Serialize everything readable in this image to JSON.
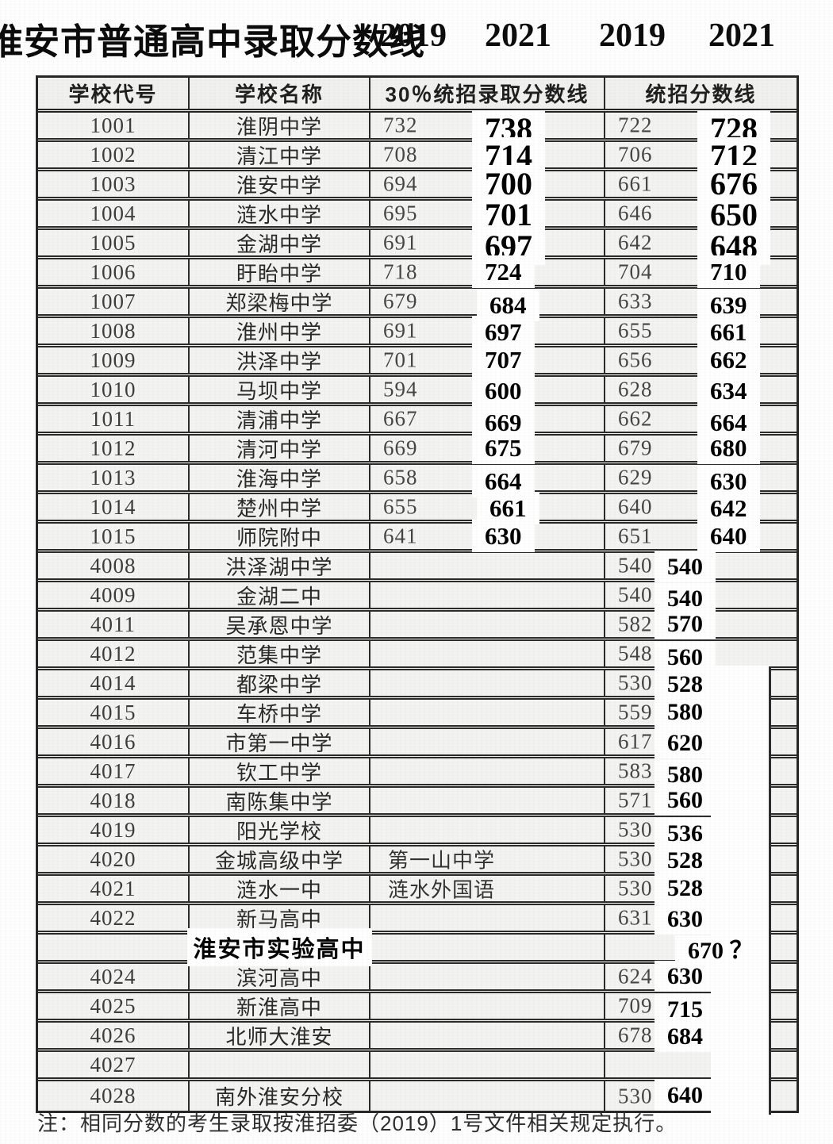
{
  "page": {
    "title": "淮安市普通高中录取分数线",
    "year_labels": [
      "2019",
      "2021",
      "2019",
      "2021"
    ],
    "note": "注：相同分数的考生录取按淮招委（2019）1号文件相关规定执行。"
  },
  "colors": {
    "border": "#262626",
    "cell_bg": "#f3f3f1",
    "overlay_bg": "#ffffff",
    "scan_text": "#454545",
    "bold_text": "#000000"
  },
  "table": {
    "headers": {
      "code": "学校代号",
      "name": "学校名称",
      "p30": "30％统招录取分数线",
      "unified": "统招分数线"
    },
    "rows": [
      {
        "code": "1001",
        "name": "淮阴中学",
        "p19": "732",
        "p21": "738",
        "alt": "",
        "u19": "722",
        "u21": "728",
        "em": false
      },
      {
        "code": "1002",
        "name": "清江中学",
        "p19": "708",
        "p21": "714",
        "alt": "",
        "u19": "706",
        "u21": "712",
        "em": false
      },
      {
        "code": "1003",
        "name": "淮安中学",
        "p19": "694",
        "p21": "700",
        "alt": "",
        "u19": "661",
        "u21": "676",
        "em": false
      },
      {
        "code": "1004",
        "name": "涟水中学",
        "p19": "695",
        "p21": "701",
        "alt": "",
        "u19": "646",
        "u21": "650",
        "em": false
      },
      {
        "code": "1005",
        "name": "金湖中学",
        "p19": "691",
        "p21": "697",
        "alt": "",
        "u19": "642",
        "u21": "648",
        "em": false
      },
      {
        "code": "1006",
        "name": "盱眙中学",
        "p19": "718",
        "p21": "724",
        "alt": "",
        "u19": "704",
        "u21": "710",
        "em": false
      },
      {
        "code": "1007",
        "name": "郑梁梅中学",
        "p19": "679",
        "p21": "684",
        "alt": "",
        "u19": "633",
        "u21": "639",
        "em": false
      },
      {
        "code": "1008",
        "name": "淮州中学",
        "p19": "691",
        "p21": "697",
        "alt": "",
        "u19": "655",
        "u21": "661",
        "em": false
      },
      {
        "code": "1009",
        "name": "洪泽中学",
        "p19": "701",
        "p21": "707",
        "alt": "",
        "u19": "656",
        "u21": "662",
        "em": false
      },
      {
        "code": "1010",
        "name": "马坝中学",
        "p19": "594",
        "p21": "600",
        "alt": "",
        "u19": "628",
        "u21": "634",
        "em": false
      },
      {
        "code": "1011",
        "name": "清浦中学",
        "p19": "667",
        "p21": "669",
        "alt": "",
        "u19": "662",
        "u21": "664",
        "em": false
      },
      {
        "code": "1012",
        "name": "清河中学",
        "p19": "669",
        "p21": "675",
        "alt": "",
        "u19": "679",
        "u21": "680",
        "em": false
      },
      {
        "code": "1013",
        "name": "淮海中学",
        "p19": "658",
        "p21": "664",
        "alt": "",
        "u19": "629",
        "u21": "630",
        "em": false
      },
      {
        "code": "1014",
        "name": "楚州中学",
        "p19": "655",
        "p21": "661",
        "alt": "",
        "u19": "640",
        "u21": "642",
        "em": false
      },
      {
        "code": "1015",
        "name": "师院附中",
        "p19": "641",
        "p21": "630",
        "alt": "",
        "u19": "651",
        "u21": "640",
        "em": false
      },
      {
        "code": "4008",
        "name": "洪泽湖中学",
        "p19": "",
        "p21": "",
        "alt": "",
        "u19": "540",
        "u21": "540",
        "em": false
      },
      {
        "code": "4009",
        "name": "金湖二中",
        "p19": "",
        "p21": "",
        "alt": "",
        "u19": "540",
        "u21": "540",
        "em": false
      },
      {
        "code": "4011",
        "name": "吴承恩中学",
        "p19": "",
        "p21": "",
        "alt": "",
        "u19": "582",
        "u21": "570",
        "em": false
      },
      {
        "code": "4012",
        "name": "范集中学",
        "p19": "",
        "p21": "",
        "alt": "",
        "u19": "548",
        "u21": "560",
        "em": false
      },
      {
        "code": "4014",
        "name": "都梁中学",
        "p19": "",
        "p21": "",
        "alt": "",
        "u19": "530",
        "u21": "528",
        "em": false
      },
      {
        "code": "4015",
        "name": "车桥中学",
        "p19": "",
        "p21": "",
        "alt": "",
        "u19": "559",
        "u21": "580",
        "em": false
      },
      {
        "code": "4016",
        "name": "市第一中学",
        "p19": "",
        "p21": "",
        "alt": "",
        "u19": "617",
        "u21": "620",
        "em": false
      },
      {
        "code": "4017",
        "name": "钦工中学",
        "p19": "",
        "p21": "",
        "alt": "",
        "u19": "583",
        "u21": "580",
        "em": false
      },
      {
        "code": "4018",
        "name": "南陈集中学",
        "p19": "",
        "p21": "",
        "alt": "",
        "u19": "571",
        "u21": "560",
        "em": false
      },
      {
        "code": "4019",
        "name": "阳光学校",
        "p19": "",
        "p21": "",
        "alt": "",
        "u19": "530",
        "u21": "536",
        "em": false
      },
      {
        "code": "4020",
        "name": "金城高级中学",
        "p19": "",
        "p21": "",
        "alt": "第一山中学",
        "u19": "530",
        "u21": "528",
        "em": false
      },
      {
        "code": "4021",
        "name": "涟水一中",
        "p19": "",
        "p21": "",
        "alt": "涟水外国语",
        "u19": "530",
        "u21": "528",
        "em": false
      },
      {
        "code": "4022",
        "name": "新马高中",
        "p19": "",
        "p21": "",
        "alt": "",
        "u19": "631",
        "u21": "630",
        "em": false
      },
      {
        "code": "",
        "name": "淮安市实验高中",
        "p19": "",
        "p21": "",
        "alt": "",
        "u19": "",
        "u21": "670 ？",
        "em": true
      },
      {
        "code": "4024",
        "name": "滨河高中",
        "p19": "",
        "p21": "",
        "alt": "",
        "u19": "624",
        "u21": "630",
        "em": false
      },
      {
        "code": "4025",
        "name": "新淮高中",
        "p19": "",
        "p21": "",
        "alt": "",
        "u19": "709",
        "u21": "715",
        "em": false
      },
      {
        "code": "4026",
        "name": "北师大淮安",
        "p19": "",
        "p21": "",
        "alt": "",
        "u19": "678",
        "u21": "684",
        "em": false
      },
      {
        "code": "4027",
        "name": "",
        "p19": "",
        "p21": "",
        "alt": "",
        "u19": "",
        "u21": "",
        "em": false
      },
      {
        "code": "4028",
        "name": "南外淮安分校",
        "p19": "",
        "p21": "",
        "alt": "",
        "u19": "530",
        "u21": "640",
        "em": false
      }
    ]
  }
}
